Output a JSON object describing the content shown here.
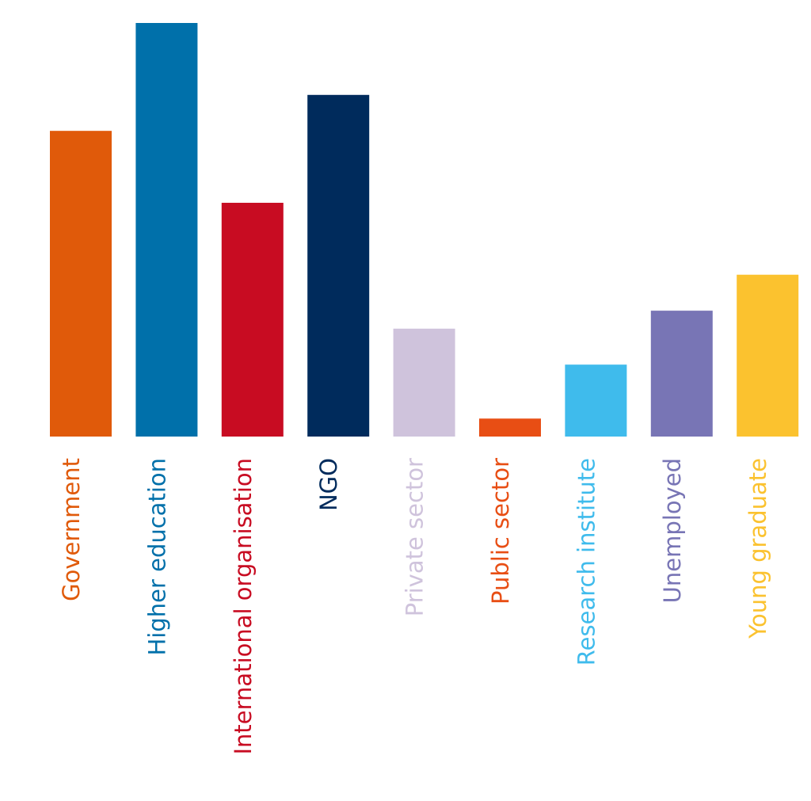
{
  "chart_data": {
    "type": "bar",
    "categories": [
      "Government",
      "Higher education",
      "International organisation",
      "NGO",
      "Private sector",
      "Public sector",
      "Research institute",
      "Unemployed",
      "Young graduate"
    ],
    "values": [
      17,
      23,
      13,
      19,
      6,
      1,
      4,
      7,
      9
    ],
    "colors": [
      "#e05a0a",
      "#0070aa",
      "#c80c22",
      "#002b5c",
      "#cfc3dc",
      "#e84e14",
      "#3fbbec",
      "#7875b5",
      "#fbc22f"
    ]
  }
}
